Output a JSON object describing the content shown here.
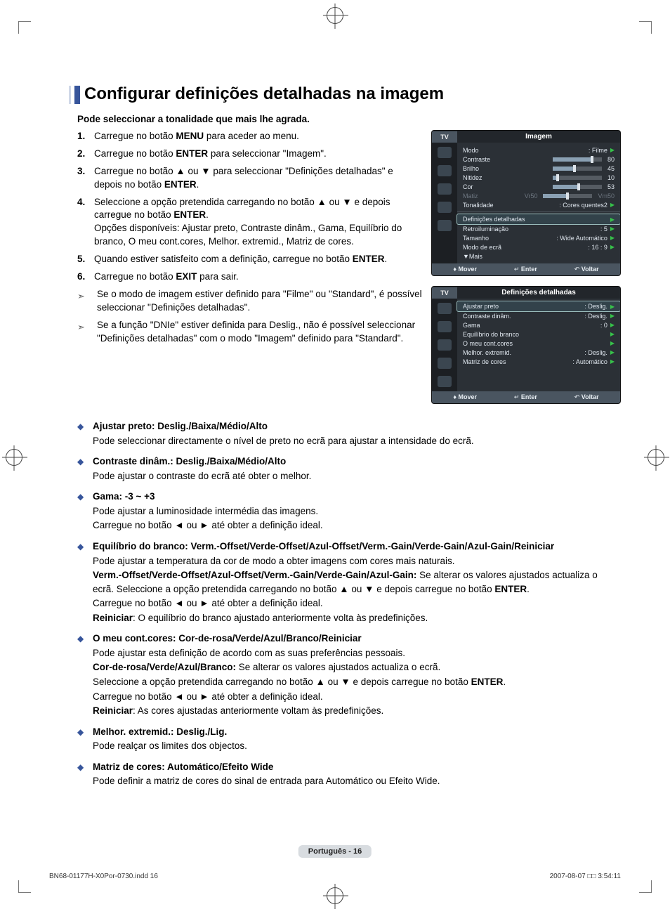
{
  "page": {
    "title": "Configurar definições detalhadas na imagem",
    "subtitle": "Pode seleccionar a tonalidade que mais lhe agrada.",
    "label": "Português - 16"
  },
  "steps": [
    {
      "n": "1.",
      "html": "Carregue no botão <b>MENU</b> para aceder ao menu."
    },
    {
      "n": "2.",
      "html": "Carregue no botão <b>ENTER</b> para seleccionar \"Imagem\"."
    },
    {
      "n": "3.",
      "html": "Carregue no botão ▲ ou ▼ para seleccionar \"Definições detalhadas\" e depois no botão <b>ENTER</b>."
    },
    {
      "n": "4.",
      "html": "Seleccione a opção pretendida carregando no botão ▲ ou ▼ e depois carregue no botão <b>ENTER</b>.<br>Opções disponíveis: Ajustar preto, Contraste dinâm., Gama, Equilíbrio do branco, O meu cont.cores, Melhor. extremid., Matriz de cores."
    },
    {
      "n": "5.",
      "html": "Quando estiver satisfeito com a definição, carregue no botão <b>ENTER</b>."
    },
    {
      "n": "6.",
      "html": "Carregue no botão <b>EXIT</b> para sair."
    }
  ],
  "notes": [
    "Se o modo de imagem estiver definido para \"Filme\" ou \"Standard\", é possível seleccionar \"Definições detalhadas\".",
    "Se a função \"DNIe\" estiver definida para Deslig., não é possível seleccionar \"Definições detalhadas\" com o modo \"Imagem\" definido para \"Standard\"."
  ],
  "bullets": [
    {
      "head": "Ajustar preto: Deslig./Baixa/Médio/Alto",
      "body": "Pode seleccionar directamente o nível de preto no ecrã para ajustar a intensidade do ecrã."
    },
    {
      "head": "Contraste dinâm.: Deslig./Baixa/Médio/Alto",
      "body": "Pode ajustar o contraste do ecrã até obter o melhor."
    },
    {
      "head": "Gama: -3 ~ +3",
      "body": "Pode ajustar a luminosidade intermédia das imagens.\nCarregue no botão ◄ ou ► até obter a definição ideal."
    },
    {
      "head": "Equilíbrio do branco: Verm.-Offset/Verde-Offset/Azul-Offset/Verm.-Gain/Verde-Gain/Azul-Gain/Reiniciar",
      "body": "Pode ajustar a temperatura da cor de modo a obter imagens com cores mais naturais.\n<b>Verm.-Offset/Verde-Offset/Azul-Offset/Verm.-Gain/Verde-Gain/Azul-Gain:</b> Se alterar os valores ajustados actualiza o ecrã. Seleccione a opção pretendida carregando no botão ▲ ou ▼ e depois carregue no botão <b>ENTER</b>.\nCarregue no botão ◄ ou ► até obter a definição ideal.\n<b>Reiniciar</b>: O equilíbrio do branco ajustado anteriormente volta às predefinições."
    },
    {
      "head": "O meu cont.cores: Cor-de-rosa/Verde/Azul/Branco/Reiniciar",
      "body": "Pode ajustar esta definição de acordo com as suas preferências pessoais.\n<b>Cor-de-rosa/Verde/Azul/Branco:</b> Se alterar os valores ajustados actualiza o ecrã.\nSeleccione a opção pretendida carregando no botão ▲ ou ▼ e depois carregue no botão <b>ENTER</b>.\nCarregue no botão ◄ ou ► até obter a definição ideal.\n<b>Reiniciar</b>: As cores ajustadas anteriormente voltam às predefinições."
    },
    {
      "head": "Melhor. extremid.: Deslig./Lig.",
      "body": "Pode realçar os limites dos objectos."
    },
    {
      "head": "Matriz de cores: Automático/Efeito Wide",
      "body": "Pode definir a matriz de cores do sinal de entrada para Automático ou Efeito Wide."
    }
  ],
  "osd1": {
    "tv": "TV",
    "title": "Imagem",
    "rows": [
      {
        "lab": "Modo",
        "val": ": Filme",
        "arrow": true
      },
      {
        "lab": "Contraste",
        "slider": 80,
        "num": "80"
      },
      {
        "lab": "Brilho",
        "slider": 45,
        "num": "45"
      },
      {
        "lab": "Nitidez",
        "slider": 10,
        "num": "10"
      },
      {
        "lab": "Cor",
        "slider": 53,
        "num": "53"
      },
      {
        "lab": "Matiz",
        "dim": true,
        "matiz_l": "Vr50",
        "matiz_r": "Vm50",
        "slider": 50
      },
      {
        "lab": "Tonalidade",
        "val": ": Cores quentes2",
        "arrow": true,
        "underline": true
      },
      {
        "lab": "Definições detalhadas",
        "sel": true,
        "arrow": true
      },
      {
        "lab": "Retroiluminação",
        "val": ": 5",
        "arrow": true
      },
      {
        "lab": "Tamanho",
        "val": ": Wide Automático",
        "arrow": true
      },
      {
        "lab": "Modo de ecrã",
        "val": ": 16 : 9",
        "arrow": true
      },
      {
        "lab": "▼Mais"
      }
    ],
    "footer": {
      "move": "Mover",
      "enter": "Enter",
      "back": "Voltar"
    }
  },
  "osd2": {
    "tv": "TV",
    "title": "Definições detalhadas",
    "rows": [
      {
        "lab": "Ajustar preto",
        "val": ": Deslig.",
        "arrow": true,
        "sel": true
      },
      {
        "lab": "Contraste dinâm.",
        "val": ": Deslig.",
        "arrow": true
      },
      {
        "lab": "Gama",
        "val": ": 0",
        "arrow": true
      },
      {
        "lab": "Equilíbrio do branco",
        "arrow": true
      },
      {
        "lab": "O meu cont.cores",
        "arrow": true
      },
      {
        "lab": "Melhor. extremid.",
        "val": ": Deslig.",
        "arrow": true
      },
      {
        "lab": "Matriz de cores",
        "val": ": Automático",
        "arrow": true
      }
    ],
    "footer": {
      "move": "Mover",
      "enter": "Enter",
      "back": "Voltar"
    }
  },
  "footer_meta": {
    "left": "BN68-01177H-X0Por-0730.indd   16",
    "right": "2007-08-07   □□ 3:54:11"
  },
  "colors": {
    "accent": "#37559b",
    "osd_bg": "#2b3036",
    "osd_footer": "#4a5560",
    "tri": "#37c24a"
  }
}
